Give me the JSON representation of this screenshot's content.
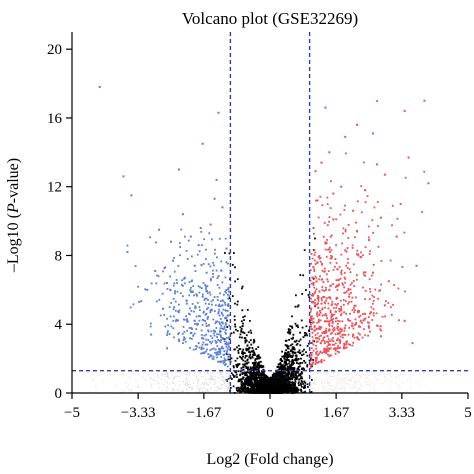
{
  "chart_data": {
    "type": "scatter",
    "title": "Volcano plot (GSE32269)",
    "xlabel": "Log2 (Fold change)",
    "ylabel_prefix": "–Log10 (",
    "ylabel_italic": "P",
    "ylabel_suffix": "-value)",
    "xlim": [
      -5,
      5
    ],
    "ylim": [
      0,
      21
    ],
    "x_ticks": [
      {
        "value": -5,
        "label": "−5"
      },
      {
        "value": -3.33,
        "label": "−3.33"
      },
      {
        "value": -1.67,
        "label": "−1.67"
      },
      {
        "value": 0,
        "label": "0"
      },
      {
        "value": 1.67,
        "label": "1.67"
      },
      {
        "value": 3.33,
        "label": "3.33"
      },
      {
        "value": 5,
        "label": "5"
      }
    ],
    "y_ticks": [
      {
        "value": 0,
        "label": "0"
      },
      {
        "value": 4,
        "label": "4"
      },
      {
        "value": 8,
        "label": "8"
      },
      {
        "value": 12,
        "label": "12"
      },
      {
        "value": 16,
        "label": "16"
      },
      {
        "value": 20,
        "label": "20"
      }
    ],
    "thresholds": {
      "log2fc": [
        -1,
        1
      ],
      "neg_log10_p": 1.3
    },
    "grid": false,
    "legend": "none",
    "colors": {
      "up": "#e8505b",
      "down": "#5a7fd6",
      "not_significant": "#000000",
      "threshold_line": "#2a3fb0",
      "axis": "#000000"
    },
    "series": [
      {
        "group": "down",
        "points": [
          [
            -4.3,
            17.8
          ],
          [
            -3.7,
            12.6
          ],
          [
            -3.5,
            11.5
          ],
          [
            -3.6,
            8.2
          ],
          [
            -2.3,
            13.0
          ],
          [
            -1.7,
            14.5
          ],
          [
            -1.3,
            16.3
          ],
          [
            -2.8,
            9.5
          ],
          [
            -2.5,
            8.8
          ],
          [
            -2.9,
            7.1
          ],
          [
            -2.6,
            6.4
          ],
          [
            -3.1,
            6.0
          ],
          [
            -2.2,
            10.4
          ],
          [
            -2.0,
            9.1
          ],
          [
            -1.8,
            8.6
          ],
          [
            -1.5,
            9.8
          ],
          [
            -1.2,
            10.8
          ],
          [
            -1.4,
            11.3
          ],
          [
            -1.9,
            7.4
          ],
          [
            -1.6,
            7.0
          ],
          [
            -1.3,
            6.8
          ],
          [
            -1.1,
            7.6
          ],
          [
            -2.4,
            5.8
          ],
          [
            -2.1,
            5.2
          ],
          [
            -1.7,
            5.6
          ],
          [
            -1.5,
            4.8
          ],
          [
            -1.2,
            5.1
          ],
          [
            -1.1,
            4.4
          ],
          [
            -1.9,
            4.2
          ],
          [
            -2.7,
            4.9
          ],
          [
            -3.3,
            5.3
          ],
          [
            -1.4,
            3.6
          ],
          [
            -1.2,
            3.2
          ],
          [
            -1.6,
            3.9
          ],
          [
            -2.0,
            3.5
          ],
          [
            -1.1,
            2.7
          ],
          [
            -1.3,
            2.4
          ],
          [
            -2.3,
            3.1
          ],
          [
            -1.8,
            2.9
          ],
          [
            -1.05,
            2.1
          ],
          [
            -1.25,
            1.8
          ],
          [
            -1.5,
            2.2
          ],
          [
            -2.6,
            2.6
          ],
          [
            -3.0,
            3.4
          ],
          [
            -1.1,
            8.4
          ],
          [
            -1.35,
            12.4
          ],
          [
            -1.05,
            6.1
          ],
          [
            -2.15,
            6.7
          ],
          [
            -1.75,
            9.6
          ],
          [
            -2.45,
            7.7
          ]
        ]
      },
      {
        "group": "up",
        "points": [
          [
            3.9,
            17.0
          ],
          [
            3.4,
            16.4
          ],
          [
            2.2,
            15.6
          ],
          [
            2.6,
            15.1
          ],
          [
            1.5,
            14.0
          ],
          [
            1.3,
            13.4
          ],
          [
            3.5,
            13.7
          ],
          [
            4.0,
            12.2
          ],
          [
            2.9,
            12.7
          ],
          [
            2.4,
            11.8
          ],
          [
            1.8,
            12.0
          ],
          [
            1.2,
            11.2
          ],
          [
            2.1,
            10.6
          ],
          [
            1.6,
            10.1
          ],
          [
            1.1,
            9.6
          ],
          [
            2.8,
            10.2
          ],
          [
            3.2,
            9.1
          ],
          [
            1.4,
            8.7
          ],
          [
            1.9,
            8.3
          ],
          [
            2.3,
            7.9
          ],
          [
            1.2,
            7.6
          ],
          [
            1.7,
            7.2
          ],
          [
            2.6,
            7.0
          ],
          [
            3.0,
            6.5
          ],
          [
            1.1,
            6.4
          ],
          [
            1.5,
            6.0
          ],
          [
            2.0,
            5.6
          ],
          [
            1.3,
            5.2
          ],
          [
            1.8,
            4.8
          ],
          [
            2.4,
            4.6
          ],
          [
            1.1,
            4.1
          ],
          [
            1.5,
            3.7
          ],
          [
            2.1,
            3.4
          ],
          [
            1.2,
            3.0
          ],
          [
            1.7,
            2.6
          ],
          [
            1.05,
            2.2
          ],
          [
            1.3,
            1.8
          ],
          [
            2.8,
            3.3
          ],
          [
            3.4,
            4.2
          ],
          [
            3.6,
            2.9
          ],
          [
            2.5,
            8.9
          ],
          [
            3.3,
            11.0
          ],
          [
            2.7,
            13.3
          ],
          [
            1.9,
            14.9
          ],
          [
            1.4,
            16.6
          ],
          [
            1.15,
            12.9
          ],
          [
            2.2,
            9.4
          ],
          [
            3.7,
            7.4
          ],
          [
            1.6,
            11.6
          ],
          [
            2.9,
            5.1
          ]
        ]
      }
    ],
    "not_significant_band": {
      "description": "dense black points near the center",
      "x_range": [
        -1,
        1
      ]
    }
  }
}
